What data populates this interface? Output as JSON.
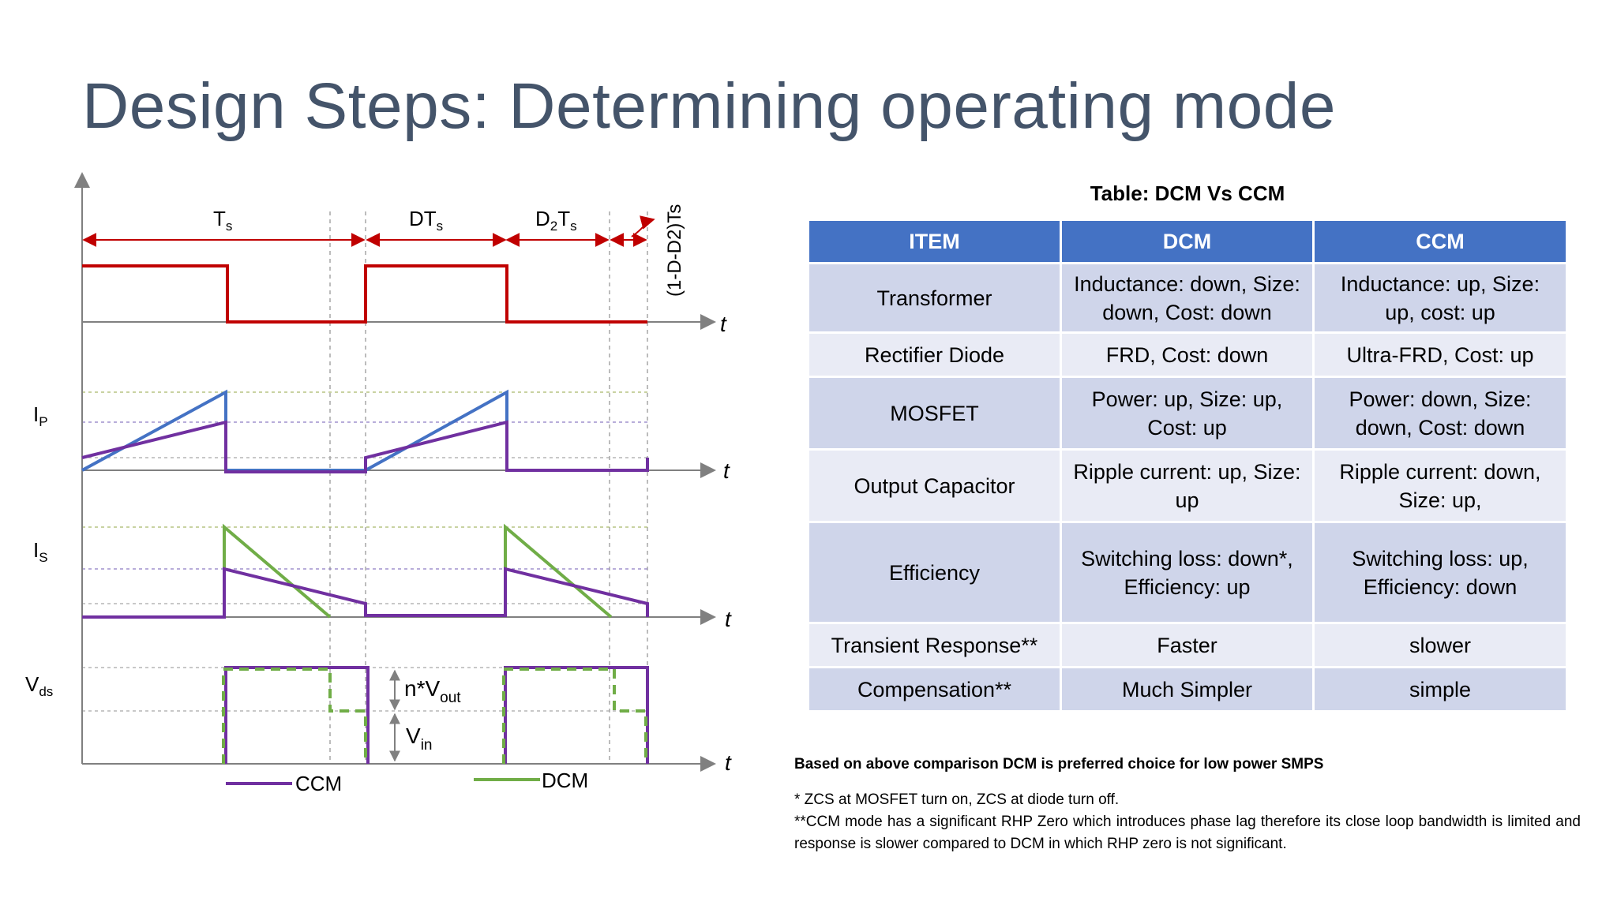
{
  "title": "Design Steps: Determining operating mode",
  "diagram": {
    "interval_labels": {
      "ts": {
        "main": "T",
        "sub": "s"
      },
      "dts": {
        "main": "DT",
        "sub": "s"
      },
      "d2ts": {
        "main": "D",
        "sub1": "2",
        "mid": "T",
        "sub2": "s"
      },
      "rest": "(1-D-D2)Ts"
    },
    "time_label": "t",
    "signal_labels": {
      "ip": {
        "main": "I",
        "sub": "P"
      },
      "is": {
        "main": "I",
        "sub": "S"
      },
      "vds": {
        "main": "V",
        "sub": "ds"
      }
    },
    "voltage_labels": {
      "nvout": {
        "main": "n*V",
        "sub": "out"
      },
      "vin": {
        "main": "V",
        "sub": "in"
      }
    },
    "legend": {
      "ccm": "CCM",
      "dcm": "DCM"
    },
    "colors": {
      "gate": "#c00000",
      "ccm": "#7030a0",
      "dcm": "#70ad47",
      "primary": "#4472c4",
      "axis": "#808080"
    }
  },
  "table": {
    "title": "Table: DCM Vs CCM",
    "headers": [
      "ITEM",
      "DCM",
      "CCM"
    ],
    "rows": [
      {
        "item": "Transformer",
        "dcm": "Inductance: down, Size: down, Cost: down",
        "ccm": "Inductance: up, Size: up, cost: up"
      },
      {
        "item": "Rectifier Diode",
        "dcm": "FRD, Cost: down",
        "ccm": "Ultra-FRD, Cost: up"
      },
      {
        "item": "MOSFET",
        "dcm": "Power: up, Size: up, Cost: up",
        "ccm": "Power: down, Size: down, Cost: down"
      },
      {
        "item": "Output Capacitor",
        "dcm": "Ripple current: up, Size: up",
        "ccm": "Ripple current: down, Size: up,"
      },
      {
        "item": "Efficiency",
        "dcm": "Switching loss: down*, Efficiency: up",
        "ccm": "Switching loss: up, Efficiency: down"
      },
      {
        "item": "Transient Response**",
        "dcm": "Faster",
        "ccm": "slower"
      },
      {
        "item": "Compensation**",
        "dcm": "Much Simpler",
        "ccm": "simple"
      }
    ]
  },
  "conclusion": "Based on above comparison DCM is preferred choice for low power SMPS",
  "notes": [
    "* ZCS at MOSFET turn on, ZCS at diode turn off.",
    "**CCM mode has a significant RHP Zero which introduces phase lag therefore its close loop bandwidth is limited and response is slower compared to DCM in which RHP zero is not significant."
  ]
}
